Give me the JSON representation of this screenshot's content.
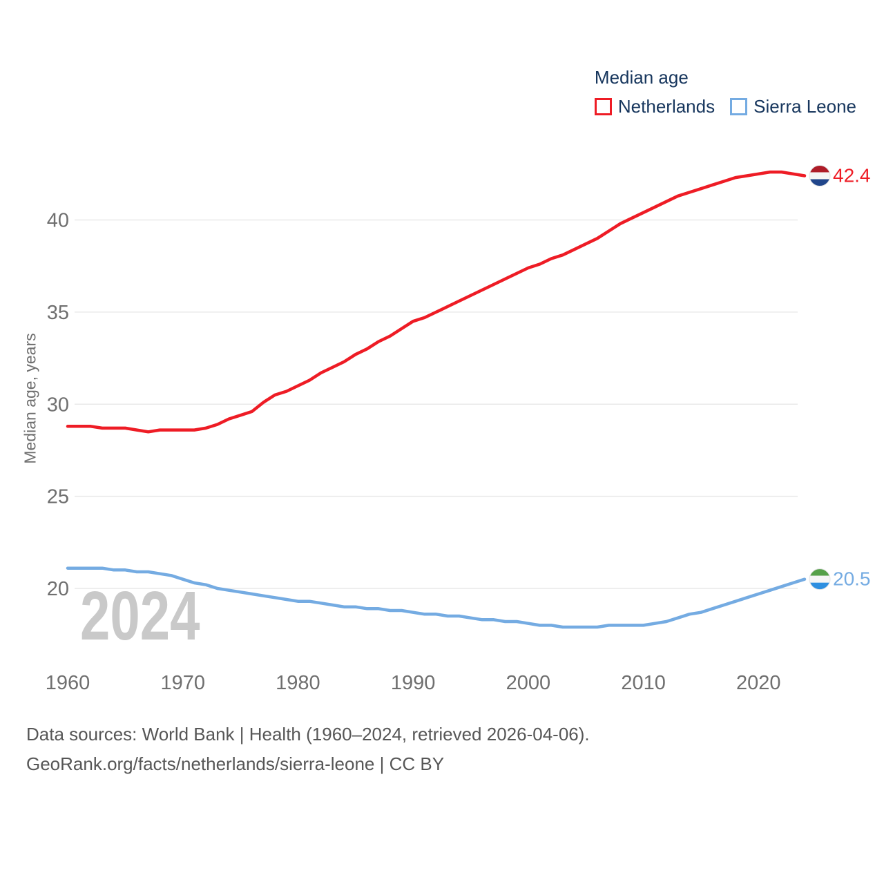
{
  "legend": {
    "title": "Median age",
    "items": [
      {
        "label": "Netherlands",
        "color": "#ee1c25"
      },
      {
        "label": "Sierra Leone",
        "color": "#74abe2"
      }
    ]
  },
  "watermark": "2024",
  "footer": {
    "line1": "Data sources: World Bank | Health (1960–2024, retrieved 2026-04-06).",
    "line2": "GeoRank.org/facts/netherlands/sierra-leone | CC BY"
  },
  "chart_data": {
    "type": "line",
    "title": "Median age",
    "xlabel": "",
    "ylabel": "Median age, years",
    "x_range": [
      1960,
      2024
    ],
    "ylim": [
      17,
      43.5
    ],
    "yticks": [
      20,
      25,
      30,
      35,
      40
    ],
    "xticks": [
      1960,
      1970,
      1980,
      1990,
      2000,
      2010,
      2020
    ],
    "grid": "horizontal",
    "legend_position": "top-right",
    "gridline_color": "#e9e9e9",
    "tick_color": "#6f6f6f",
    "series": [
      {
        "name": "Netherlands",
        "color": "#ee1c25",
        "end_label": "42.4",
        "flag_stripes": [
          "#ae1c28",
          "#f5f5f5",
          "#21468b"
        ],
        "values": [
          28.8,
          28.8,
          28.8,
          28.7,
          28.7,
          28.7,
          28.6,
          28.5,
          28.6,
          28.6,
          28.6,
          28.6,
          28.7,
          28.9,
          29.2,
          29.4,
          29.6,
          30.1,
          30.5,
          30.7,
          31.0,
          31.3,
          31.7,
          32.0,
          32.3,
          32.7,
          33.0,
          33.4,
          33.7,
          34.1,
          34.5,
          34.7,
          35.0,
          35.3,
          35.6,
          35.9,
          36.2,
          36.5,
          36.8,
          37.1,
          37.4,
          37.6,
          37.9,
          38.1,
          38.4,
          38.7,
          39.0,
          39.4,
          39.8,
          40.1,
          40.4,
          40.7,
          41.0,
          41.3,
          41.5,
          41.7,
          41.9,
          42.1,
          42.3,
          42.4,
          42.5,
          42.6,
          42.6,
          42.5,
          42.4
        ]
      },
      {
        "name": "Sierra Leone",
        "color": "#74abe2",
        "end_label": "20.5",
        "flag_stripes": [
          "#55a049",
          "#f5f5f5",
          "#2e8fe0"
        ],
        "values": [
          21.1,
          21.1,
          21.1,
          21.1,
          21.0,
          21.0,
          20.9,
          20.9,
          20.8,
          20.7,
          20.5,
          20.3,
          20.2,
          20.0,
          19.9,
          19.8,
          19.7,
          19.6,
          19.5,
          19.4,
          19.3,
          19.3,
          19.2,
          19.1,
          19.0,
          19.0,
          18.9,
          18.9,
          18.8,
          18.8,
          18.7,
          18.6,
          18.6,
          18.5,
          18.5,
          18.4,
          18.3,
          18.3,
          18.2,
          18.2,
          18.1,
          18.0,
          18.0,
          17.9,
          17.9,
          17.9,
          17.9,
          18.0,
          18.0,
          18.0,
          18.0,
          18.1,
          18.2,
          18.4,
          18.6,
          18.7,
          18.9,
          19.1,
          19.3,
          19.5,
          19.7,
          19.9,
          20.1,
          20.3,
          20.5
        ]
      }
    ]
  }
}
